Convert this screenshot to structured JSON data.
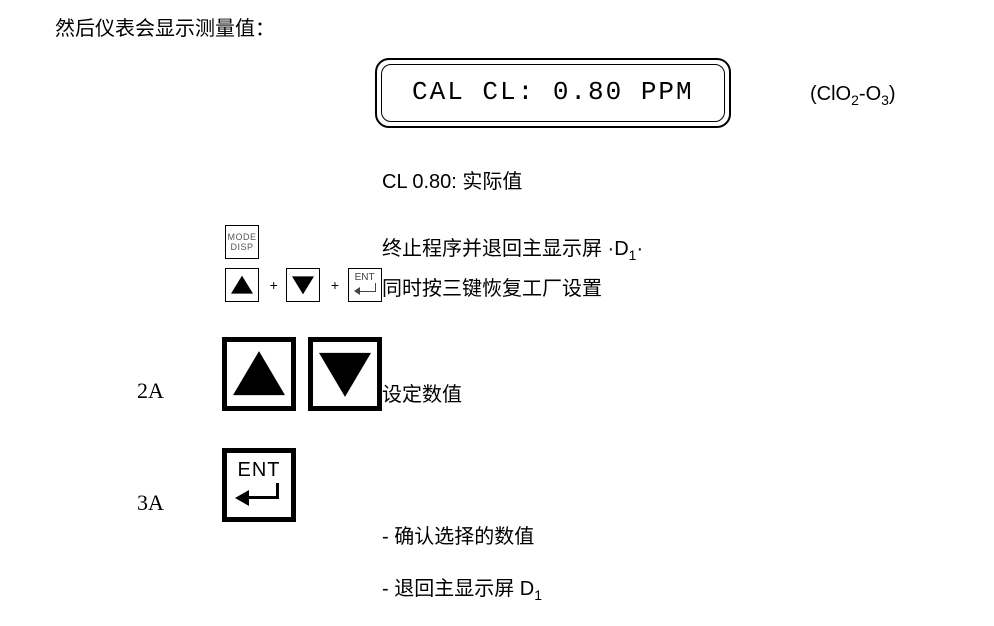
{
  "intro": "然后仪表会显示测量值：",
  "lcd": {
    "text": "CAL CL: 0.80 PPM"
  },
  "lcd_annotation": {
    "prefix": "(ClO",
    "sub1": "2",
    "mid": "-O",
    "sub2": "3",
    "suffix": ")"
  },
  "actual_value": "CL 0.80: 实际值",
  "mode_button": {
    "line1": "MODE",
    "line2": "DISP"
  },
  "mode_desc": {
    "text": "终止程序并退回主显示屏 ·D",
    "sub": "1",
    "tail": "·"
  },
  "plus": "+",
  "ent_label": "ENT",
  "reset_desc": "同时按三键恢复工厂设置",
  "step2a": {
    "label": "2A",
    "desc": "设定数值"
  },
  "step3a": {
    "label": "3A",
    "desc1": "- 确认选择的数值",
    "desc2_prefix": "- 退回主显示屏 D",
    "desc2_sub": "1"
  },
  "colors": {
    "text": "#000000",
    "bg": "#ffffff",
    "muted": "#555555"
  }
}
